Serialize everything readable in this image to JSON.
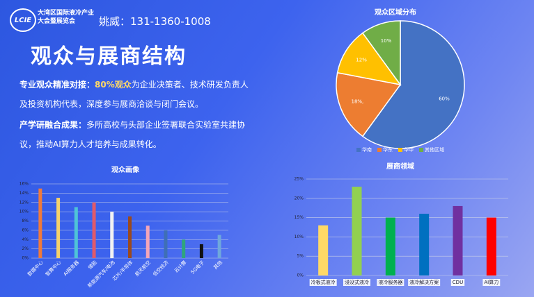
{
  "header": {
    "logo": "LCIE",
    "org_line1": "大湾区国际液冷产业",
    "org_line2": "大会暨展览会",
    "contact": "姚威：131-1360-1008"
  },
  "title": "观众与展商结构",
  "paragraphs": [
    {
      "lead": "专业观众精准对接：",
      "highlight": "80%观众",
      "text": "为企业决策者、技术研发负责人及投资机构代表，深度参与展商洽谈与闭门会议。"
    },
    {
      "lead": "产学研融合成果：",
      "text": "多所高校与头部企业签署联合实验室共建协议，推动AI算力人才培养与成果转化。"
    }
  ],
  "chart_data": [
    {
      "type": "pie",
      "title": "观众区域分布",
      "categories": [
        "华南",
        "华东",
        "华中",
        "其他区域"
      ],
      "values": [
        60,
        18,
        12,
        10
      ],
      "value_labels": [
        "60%",
        "18%,",
        "12%",
        "10%"
      ],
      "colors": [
        "#4472c4",
        "#ed7d31",
        "#ffc000",
        "#70ad47"
      ],
      "legend": "bottom"
    },
    {
      "type": "bar",
      "title": "观众画像",
      "categories": [
        "数据中心",
        "智算中心",
        "AI服务器",
        "储能",
        "新能源汽车/电池",
        "芯片/半导体",
        "航天航空",
        "低空经济",
        "云计算",
        "5G电子",
        "其他"
      ],
      "values": [
        15,
        13,
        11,
        12,
        10,
        9,
        7,
        6,
        4,
        3,
        5
      ],
      "colors": [
        "#f07a3a",
        "#f5d26b",
        "#4fc3d7",
        "#e05a6a",
        "#f2f2f2",
        "#9a4a1e",
        "#f4a6b8",
        "#3f6fb5",
        "#2fa57d",
        "#111111",
        "#6fa8dc"
      ],
      "ylim": [
        0,
        16
      ],
      "yticks": [
        {
          "value": 0,
          "label": "0%"
        },
        {
          "value": 2,
          "label": "2%"
        },
        {
          "value": 4,
          "label": "4%"
        },
        {
          "value": 6,
          "label": "6%"
        },
        {
          "value": 8,
          "label": "8%"
        },
        {
          "value": 10,
          "label": "10%"
        },
        {
          "value": 12,
          "label": "12%"
        },
        {
          "value": 14,
          "label": "14%"
        },
        {
          "value": 16,
          "label": "16%"
        }
      ],
      "grid": true
    },
    {
      "type": "bar",
      "title": "展商领域",
      "categories": [
        "冷板式液冷",
        "浸没式液冷",
        "液冷服务器",
        "液冷解决方案",
        "CDU",
        "AI算力"
      ],
      "values": [
        13,
        23,
        15,
        16,
        18,
        15
      ],
      "colors": [
        "#ffd966",
        "#92d050",
        "#00b050",
        "#0070c0",
        "#7030a0",
        "#ff0000"
      ],
      "ylim": [
        0,
        25
      ],
      "yticks": [
        {
          "value": 0,
          "label": "0%"
        },
        {
          "value": 5,
          "label": "5%"
        },
        {
          "value": 10,
          "label": "10%"
        },
        {
          "value": 15,
          "label": "15%"
        },
        {
          "value": 20,
          "label": "20%"
        },
        {
          "value": 25,
          "label": "25%"
        }
      ],
      "grid": true
    }
  ]
}
